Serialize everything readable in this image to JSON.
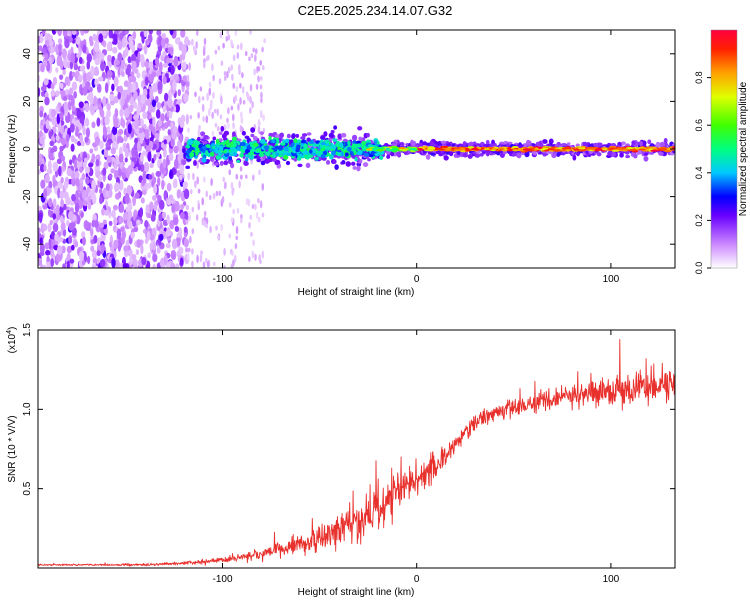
{
  "title": "C2E5.2025.234.14.07.G32",
  "chart_data": [
    {
      "type": "heatmap",
      "xlabel": "Height of straight line (km)",
      "ylabel": "Frequency (Hz)",
      "xlim": [
        -195,
        133
      ],
      "ylim": [
        -50,
        50
      ],
      "xticks": [
        -100,
        0,
        100
      ],
      "xtick_labels": [
        "-100",
        "0",
        "100"
      ],
      "yticks": [
        -40,
        -20,
        0,
        20,
        40
      ],
      "ytick_labels": [
        "-40",
        "-20",
        "0",
        "20",
        "40"
      ],
      "description_regions": [
        {
          "x_range": [
            -195,
            -120
          ],
          "freq_spread": 50,
          "amplitude": [
            0.0,
            0.25
          ]
        },
        {
          "x_range": [
            -120,
            -90
          ],
          "freq_spread": 12,
          "amplitude": [
            0.05,
            0.25
          ]
        },
        {
          "x_range": [
            -120,
            -20
          ],
          "freq_spread": 6,
          "amplitude": [
            0.1,
            0.45
          ]
        },
        {
          "x_range": [
            -20,
            133
          ],
          "freq_spread": 2,
          "amplitude": [
            0.3,
            1.0
          ]
        }
      ],
      "colorbar": {
        "label": "Normalized spectral amplitude",
        "range": [
          0,
          1
        ],
        "ticks": [
          0.0,
          0.2,
          0.4,
          0.6,
          0.8
        ],
        "tick_labels": [
          "0.0",
          "0.2",
          "0.4",
          "0.6",
          "0.8"
        ]
      }
    },
    {
      "type": "line",
      "xlabel": "Height of straight line (km)",
      "ylabel": "SNR (10 * V/V)",
      "scale_label": "(x10",
      "scale_exp": "4",
      "scale_close": ")",
      "xlim": [
        -195,
        133
      ],
      "ylim": [
        0,
        1.5
      ],
      "xticks": [
        -100,
        0,
        100
      ],
      "xtick_labels": [
        "-100",
        "0",
        "100"
      ],
      "yticks": [
        0.5,
        1.0,
        1.5
      ],
      "ytick_labels": [
        "0.5",
        "1.0",
        "1.5"
      ],
      "color": "#e8302c",
      "series": [
        {
          "name": "SNR",
          "x": [
            -195,
            -180,
            -160,
            -140,
            -120,
            -110,
            -100,
            -90,
            -80,
            -70,
            -60,
            -50,
            -40,
            -30,
            -25,
            -20,
            -15,
            -10,
            -5,
            0,
            5,
            10,
            15,
            20,
            25,
            30,
            40,
            50,
            60,
            70,
            80,
            90,
            100,
            110,
            120,
            133
          ],
          "y": [
            0.02,
            0.02,
            0.02,
            0.02,
            0.03,
            0.04,
            0.05,
            0.07,
            0.09,
            0.12,
            0.15,
            0.18,
            0.23,
            0.3,
            0.34,
            0.38,
            0.42,
            0.48,
            0.53,
            0.56,
            0.6,
            0.64,
            0.7,
            0.78,
            0.86,
            0.92,
            0.98,
            1.01,
            1.04,
            1.07,
            1.09,
            1.1,
            1.12,
            1.13,
            1.14,
            1.16
          ],
          "noise": [
            0.005,
            0.005,
            0.006,
            0.008,
            0.01,
            0.015,
            0.02,
            0.03,
            0.04,
            0.05,
            0.06,
            0.08,
            0.1,
            0.12,
            0.14,
            0.15,
            0.15,
            0.14,
            0.12,
            0.1,
            0.09,
            0.08,
            0.07,
            0.06,
            0.06,
            0.05,
            0.05,
            0.05,
            0.06,
            0.06,
            0.07,
            0.08,
            0.09,
            0.1,
            0.1,
            0.11
          ]
        }
      ]
    }
  ]
}
